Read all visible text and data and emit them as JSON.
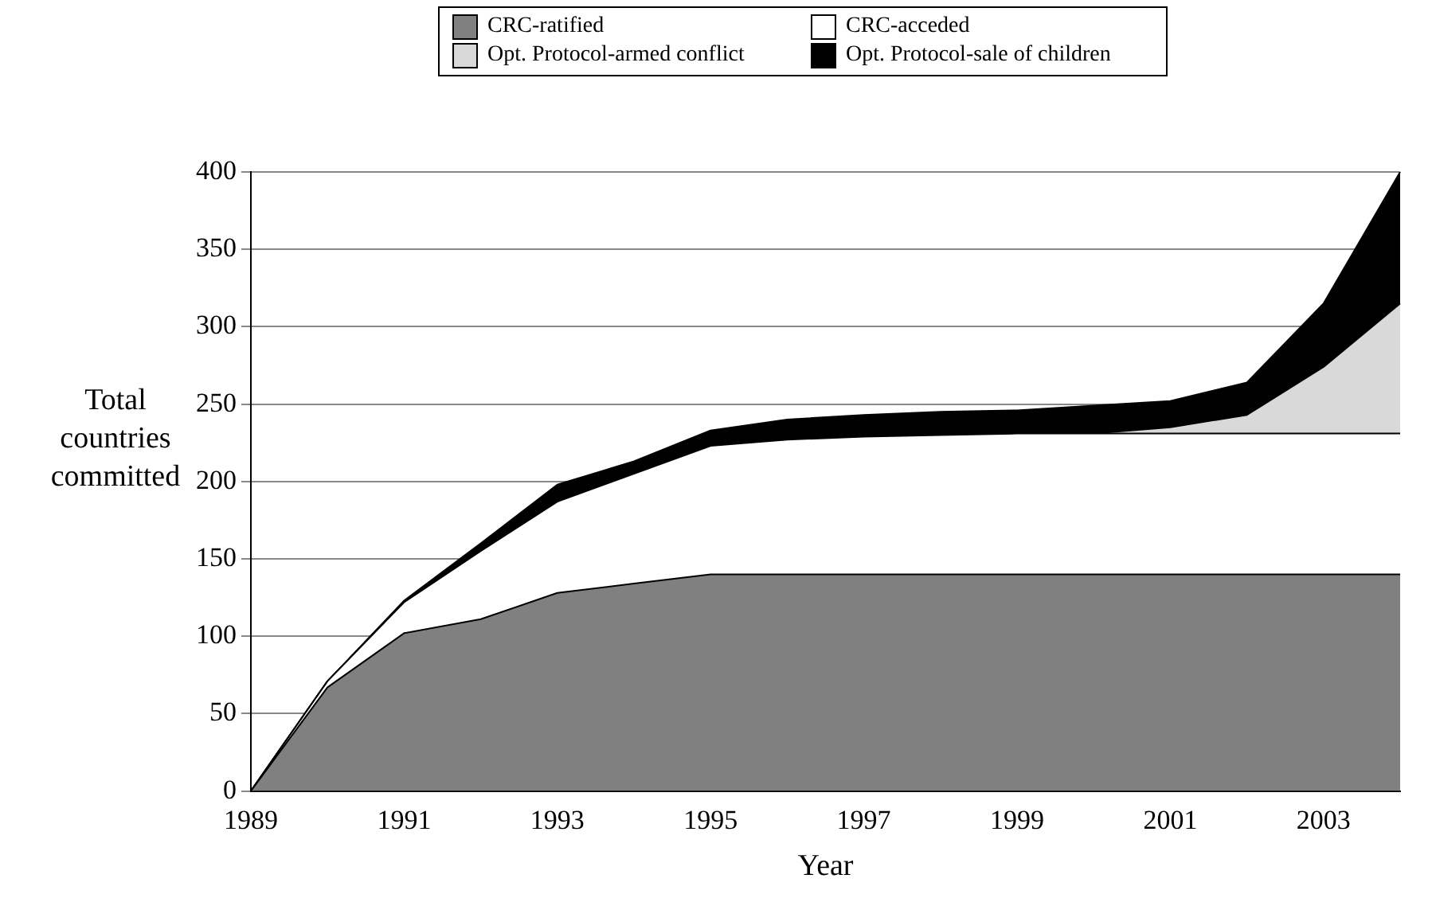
{
  "chart_data": {
    "type": "area",
    "stacked": true,
    "xlabel": "Year",
    "ylabel": "Total countries committed",
    "categories": [
      "1989",
      null,
      "1991",
      null,
      "1993",
      null,
      "1995",
      null,
      "1997",
      null,
      "1999",
      null,
      "2001",
      null,
      "2003",
      null
    ],
    "series": [
      {
        "name": "CRC-ratified",
        "color": "#808080",
        "values": [
          0,
          67,
          102,
          111,
          128,
          134,
          140,
          140,
          140,
          140,
          140,
          140,
          140,
          140,
          140,
          140
        ]
      },
      {
        "name": "CRC-acceded",
        "color": "#ffffff",
        "values": [
          0,
          4,
          20,
          44,
          59,
          71,
          83,
          87,
          89,
          90,
          91,
          91,
          91,
          91,
          91,
          91
        ]
      },
      {
        "name": "Opt. Protocol-armed conflict",
        "color": "#d9d9d9",
        "values": [
          0,
          0,
          0,
          0,
          0,
          0,
          0,
          0,
          0,
          0,
          0,
          0,
          4,
          12,
          43,
          84
        ]
      },
      {
        "name": "Opt. Protocol-sale of children",
        "color": "#000000",
        "values": [
          0,
          0,
          1,
          5,
          11,
          8,
          10,
          13,
          14,
          15,
          15,
          18,
          17,
          21,
          41,
          85
        ]
      }
    ],
    "ylim": [
      0,
      400
    ],
    "yticks": [
      0,
      50,
      100,
      150,
      200,
      250,
      300,
      350,
      400
    ],
    "grid": "y",
    "legend": "top"
  }
}
